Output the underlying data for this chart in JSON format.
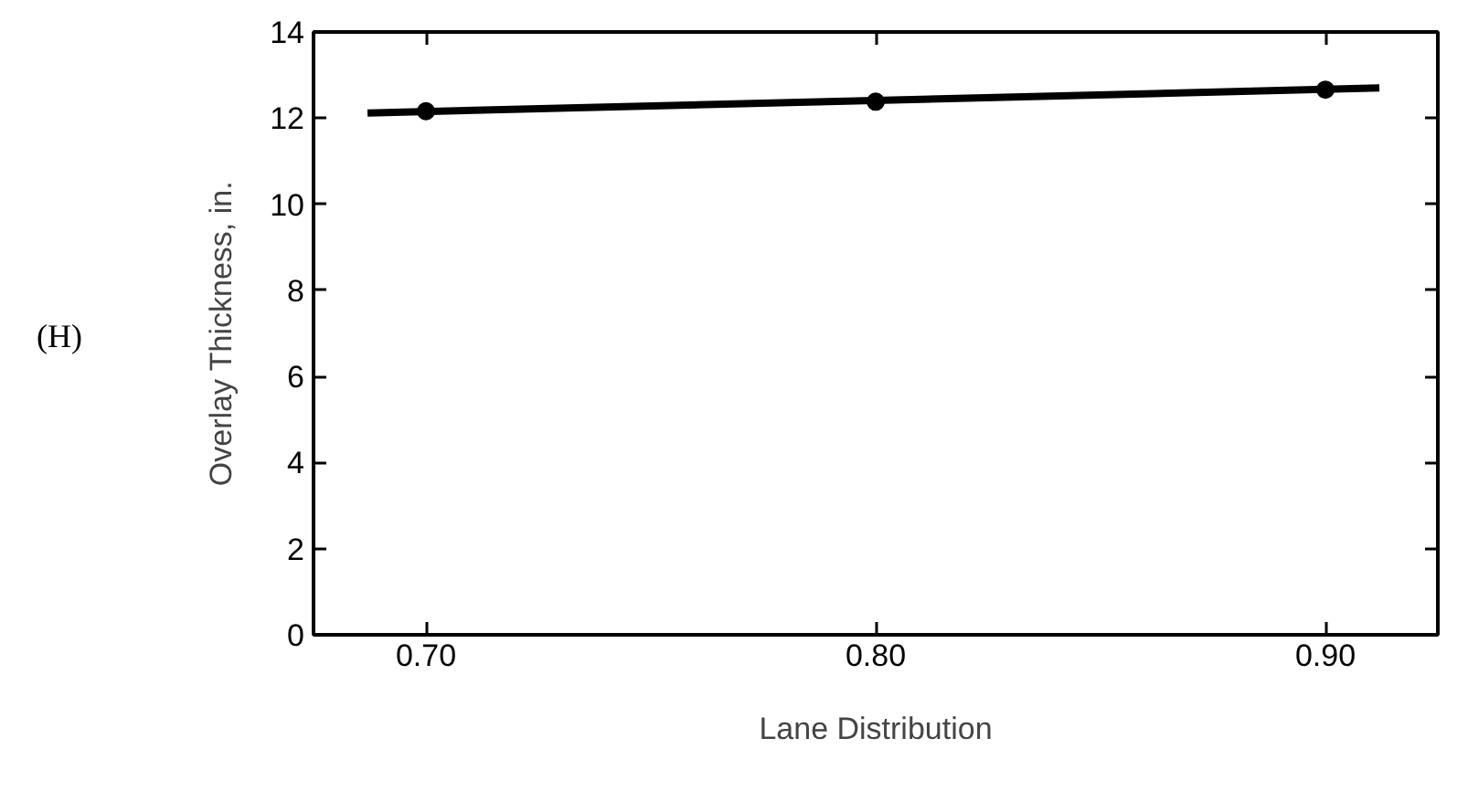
{
  "chart_data": {
    "type": "scatter",
    "xlabel": "Lane Distribution",
    "ylabel": "Overlay Thickness, in.",
    "annotations": [
      "(H)"
    ],
    "xlim": [
      0.675,
      0.925
    ],
    "ylim": [
      0,
      14
    ],
    "xticks": [
      {
        "value": 0.7,
        "label": "0.70"
      },
      {
        "value": 0.8,
        "label": "0.80"
      },
      {
        "value": 0.9,
        "label": "0.90"
      }
    ],
    "yticks": [
      0,
      2,
      4,
      6,
      8,
      10,
      12,
      14
    ],
    "grid": false,
    "series": [
      {
        "color": "#000000",
        "marker": "circle",
        "x": [
          0.7,
          0.8,
          0.9
        ],
        "values": [
          12.16,
          12.38,
          12.66
        ]
      },
      {
        "type": "line",
        "color": "#000000",
        "x": [
          0.687,
          0.912
        ],
        "values": [
          12.12,
          12.7
        ],
        "line_style": "solid"
      }
    ]
  }
}
